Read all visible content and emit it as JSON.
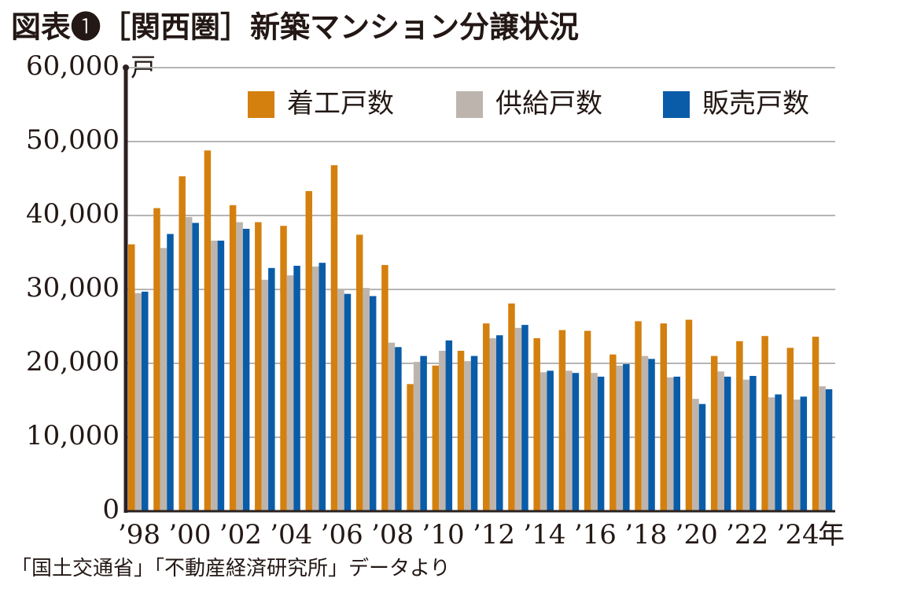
{
  "chart_data": {
    "type": "bar",
    "title": "図表❶［関西圏］新築マンション分譲状況",
    "y_unit": "戸",
    "x_unit": "年",
    "source": "「国土交通省」「不動産経済研究所」データより",
    "categories": [
      "’98",
      null,
      "’00",
      null,
      "’02",
      null,
      "’04",
      null,
      "’06",
      null,
      "’08",
      null,
      "’10",
      null,
      "’12",
      null,
      "’14",
      null,
      "’16",
      null,
      "’18",
      null,
      "’20",
      null,
      "’22",
      null,
      "’24",
      null
    ],
    "series": [
      {
        "name": "着工戸数",
        "color": "#d4800f",
        "values": [
          36100,
          41000,
          45300,
          48800,
          41400,
          39100,
          38600,
          43300,
          46800,
          37400,
          33300,
          17200,
          19700,
          21700,
          25400,
          28100,
          23400,
          24500,
          24400,
          21200,
          25700,
          25400,
          25900,
          21000,
          23000,
          23700,
          22100,
          23600
        ]
      },
      {
        "name": "供給戸数",
        "color": "#bdb5ad",
        "values": [
          29500,
          35600,
          39800,
          36600,
          39100,
          31300,
          31900,
          33100,
          30000,
          30200,
          22800,
          20200,
          21700,
          20300,
          23400,
          24800,
          18800,
          19000,
          18700,
          19700,
          21000,
          18100,
          15200,
          18900,
          17800,
          15400,
          15100,
          16900
        ]
      },
      {
        "name": "販売戸数",
        "color": "#0a5ca8",
        "values": [
          29700,
          37500,
          39000,
          36600,
          38200,
          32900,
          33200,
          33600,
          29400,
          29100,
          22200,
          21000,
          23100,
          21000,
          23800,
          25200,
          19000,
          18700,
          18200,
          19900,
          20600,
          18200,
          14500,
          18200,
          18300,
          15800,
          15500,
          16500
        ]
      }
    ],
    "ylim": [
      0,
      60000
    ],
    "yticks": [
      0,
      {
        "value": 10000,
        "label": "10,000"
      },
      {
        "value": 20000,
        "label": "20,000"
      },
      {
        "value": 30000,
        "label": "30,000"
      },
      {
        "value": 40000,
        "label": "40,000"
      },
      {
        "value": 50000,
        "label": "50,000"
      },
      {
        "value": 60000,
        "label": "60,000"
      }
    ],
    "grid": true
  }
}
